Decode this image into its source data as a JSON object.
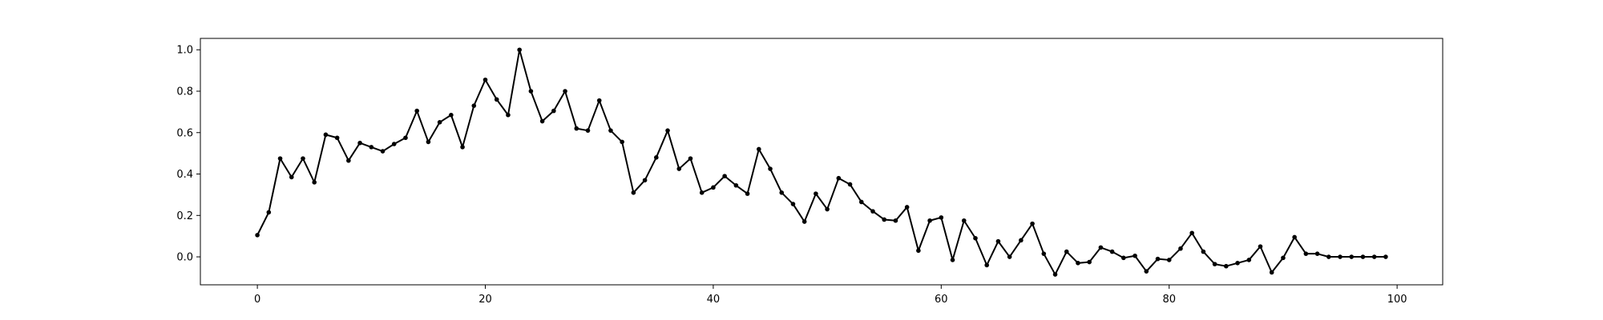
{
  "chart_data": {
    "type": "line",
    "title": "",
    "xlabel": "",
    "ylabel": "",
    "xlim": [
      -5,
      104
    ],
    "ylim": [
      -0.135,
      1.055
    ],
    "x_ticks": [
      0,
      20,
      40,
      60,
      80,
      100
    ],
    "x_tick_labels": [
      "0",
      "20",
      "40",
      "60",
      "80",
      "100"
    ],
    "y_ticks": [
      0.0,
      0.2,
      0.4,
      0.6,
      0.8,
      1.0
    ],
    "y_tick_labels": [
      "0.0",
      "0.2",
      "0.4",
      "0.6",
      "0.8",
      "1.0"
    ],
    "grid": false,
    "line_color": "#000000",
    "marker": "circle",
    "series": [
      {
        "x": [
          0,
          1,
          2,
          3,
          4,
          5,
          6,
          7,
          8,
          9,
          10,
          11,
          12,
          13,
          14,
          15,
          16,
          17,
          18,
          19,
          20,
          21,
          22,
          23,
          24,
          25,
          26,
          27,
          28,
          29,
          30,
          31,
          32,
          33,
          34,
          35,
          36,
          37,
          38,
          39,
          40,
          41,
          42,
          43,
          44,
          45,
          46,
          47,
          48,
          49,
          50,
          51,
          52,
          53,
          54,
          55,
          56,
          57,
          58,
          59,
          60,
          61,
          62,
          63,
          64,
          65,
          66,
          67,
          68,
          69,
          70,
          71,
          72,
          73,
          74,
          75,
          76,
          77,
          78,
          79,
          80,
          81,
          82,
          83,
          84,
          85,
          86,
          87,
          88,
          89,
          90,
          91,
          92,
          93,
          94,
          95,
          96,
          97,
          98,
          99
        ],
        "y": [
          0.105,
          0.215,
          0.475,
          0.385,
          0.475,
          0.36,
          0.59,
          0.575,
          0.465,
          0.55,
          0.53,
          0.51,
          0.545,
          0.575,
          0.705,
          0.555,
          0.65,
          0.685,
          0.53,
          0.73,
          0.855,
          0.76,
          0.685,
          1.0,
          0.8,
          0.655,
          0.705,
          0.8,
          0.62,
          0.61,
          0.755,
          0.61,
          0.555,
          0.31,
          0.37,
          0.48,
          0.61,
          0.425,
          0.475,
          0.31,
          0.335,
          0.39,
          0.345,
          0.305,
          0.52,
          0.425,
          0.31,
          0.255,
          0.17,
          0.305,
          0.23,
          0.38,
          0.35,
          0.265,
          0.22,
          0.18,
          0.175,
          0.24,
          0.03,
          0.175,
          0.19,
          -0.015,
          0.175,
          0.09,
          -0.04,
          0.075,
          0.0,
          0.08,
          0.16,
          0.015,
          -0.085,
          0.025,
          -0.03,
          -0.025,
          0.045,
          0.025,
          -0.005,
          0.005,
          -0.07,
          -0.01,
          -0.015,
          0.04,
          0.115,
          0.025,
          -0.035,
          -0.045,
          -0.03,
          -0.015,
          0.05,
          -0.075,
          -0.005,
          0.095,
          0.015,
          0.015,
          0.0,
          0.0,
          0.0,
          0.0,
          0.0,
          0.0
        ]
      }
    ]
  }
}
